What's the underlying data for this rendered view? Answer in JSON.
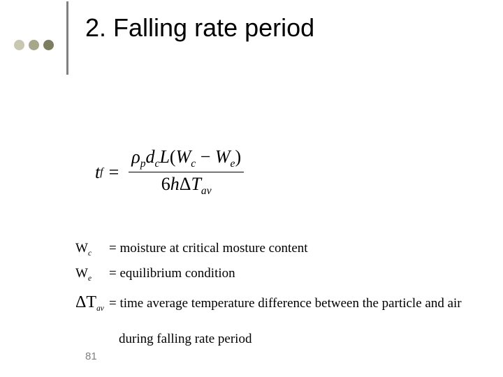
{
  "header": {
    "dots": [
      "#c8c8b0",
      "#a7a78c",
      "#7d7d60"
    ],
    "vline_color": "#808080",
    "title": "2. Falling rate period"
  },
  "equation": {
    "lhs_var": "t",
    "lhs_sub": "f",
    "eq": "=",
    "num_rho": "ρ",
    "num_rho_sub": "p",
    "num_d": "d",
    "num_d_sub": "c",
    "num_L": "L",
    "num_open": "(",
    "num_W1": "W",
    "num_W1_sub": "c",
    "num_minus": " − ",
    "num_W2": "W",
    "num_W2_sub": "e",
    "num_close": ")",
    "den_six": "6",
    "den_h": "h",
    "den_delta": "Δ",
    "den_T": "T",
    "den_T_sub": "av"
  },
  "definitions": [
    {
      "sym": "W",
      "sub": "c",
      "text": "= moisture at critical mosture content"
    },
    {
      "sym": "W",
      "sub": "e",
      "text": "= equilibrium condition"
    },
    {
      "sym": "ΔT",
      "sub": "av",
      "text": "= time average temperature difference between the particle and air"
    }
  ],
  "clause": "during falling rate period",
  "page_number": "81"
}
